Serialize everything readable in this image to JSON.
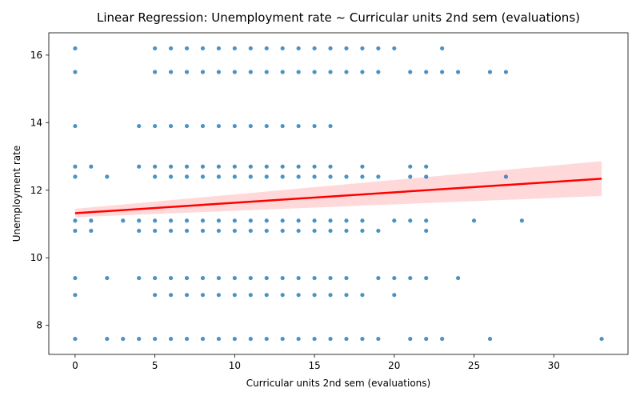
{
  "chart_data": {
    "type": "scatter",
    "title": "Linear Regression: Unemployment rate ~ Curricular units 2nd sem (evaluations)",
    "xlabel": "Curricular units 2nd sem (evaluations)",
    "ylabel": "Unemployment rate",
    "xlim": [
      -1.65,
      34.65
    ],
    "ylim": [
      7.14,
      16.66
    ],
    "xticks": [
      0,
      5,
      10,
      15,
      20,
      25,
      30
    ],
    "yticks": [
      8,
      10,
      12,
      14,
      16
    ],
    "grid": false,
    "point_color": "#1f77b4",
    "line_color": "#ff0000",
    "y_levels": [
      7.6,
      8.9,
      9.4,
      10.8,
      11.1,
      12.4,
      12.7,
      13.9,
      15.5,
      16.2
    ],
    "points_by_level": [
      {
        "y": 16.2,
        "x": [
          0,
          5,
          6,
          7,
          8,
          9,
          10,
          11,
          12,
          13,
          14,
          15,
          16,
          17,
          18,
          19,
          20,
          23
        ]
      },
      {
        "y": 15.5,
        "x": [
          0,
          5,
          6,
          7,
          8,
          9,
          10,
          11,
          12,
          13,
          14,
          15,
          16,
          17,
          18,
          19,
          21,
          22,
          23,
          24,
          26,
          27
        ]
      },
      {
        "y": 13.9,
        "x": [
          0,
          4,
          5,
          6,
          7,
          8,
          9,
          10,
          11,
          12,
          13,
          14,
          15,
          16
        ]
      },
      {
        "y": 12.7,
        "x": [
          0,
          1,
          4,
          5,
          6,
          7,
          8,
          9,
          10,
          11,
          12,
          13,
          14,
          15,
          16,
          18,
          21,
          22
        ]
      },
      {
        "y": 12.4,
        "x": [
          0,
          2,
          5,
          6,
          7,
          8,
          9,
          10,
          11,
          12,
          13,
          14,
          15,
          16,
          17,
          18,
          19,
          21,
          22,
          27
        ]
      },
      {
        "y": 11.1,
        "x": [
          0,
          1,
          3,
          4,
          5,
          6,
          7,
          8,
          9,
          10,
          11,
          12,
          13,
          14,
          15,
          16,
          17,
          18,
          20,
          21,
          22,
          25,
          28
        ]
      },
      {
        "y": 10.8,
        "x": [
          0,
          1,
          4,
          5,
          6,
          7,
          8,
          9,
          10,
          11,
          12,
          13,
          14,
          15,
          16,
          17,
          18,
          19,
          22
        ]
      },
      {
        "y": 9.4,
        "x": [
          0,
          2,
          4,
          5,
          6,
          7,
          8,
          9,
          10,
          11,
          12,
          13,
          14,
          15,
          16,
          17,
          19,
          20,
          21,
          22,
          24
        ]
      },
      {
        "y": 8.9,
        "x": [
          0,
          5,
          6,
          7,
          8,
          9,
          10,
          11,
          12,
          13,
          14,
          15,
          16,
          17,
          18,
          20
        ]
      },
      {
        "y": 7.6,
        "x": [
          0,
          2,
          3,
          4,
          5,
          6,
          7,
          8,
          9,
          10,
          11,
          12,
          13,
          14,
          15,
          16,
          17,
          18,
          19,
          21,
          22,
          23,
          26,
          33
        ]
      }
    ],
    "regression": {
      "x_range": [
        0,
        33
      ],
      "y_at_x_min": 11.32,
      "y_at_x_max": 12.34,
      "ci_lower_at_x_min": 11.2,
      "ci_upper_at_x_min": 11.45,
      "ci_lower_at_x_max": 11.83,
      "ci_upper_at_x_max": 12.86
    }
  }
}
